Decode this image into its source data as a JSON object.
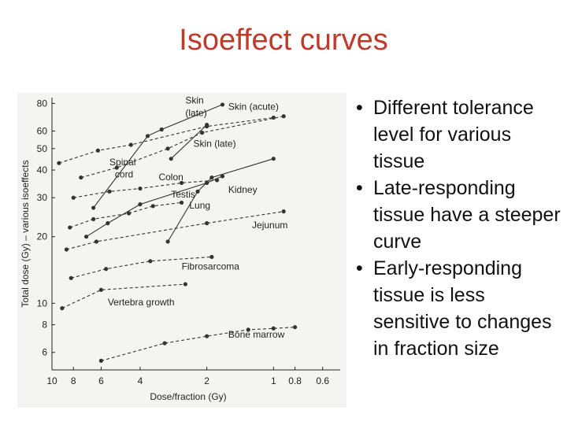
{
  "slide": {
    "title": "Isoeffect curves",
    "bullets": [
      "Different tolerance level for various tissue",
      "Late-responding tissue have a steeper curve",
      "Early-responding tissue is less sensitive to changes in fraction size"
    ]
  },
  "chart_data": {
    "type": "line",
    "title": "",
    "xlabel": "Dose/fraction (Gy)",
    "ylabel": "Total dose (Gy) – various isoeffects",
    "x_scale": "log-reversed",
    "y_scale": "log",
    "xlim": [
      10,
      0.5
    ],
    "ylim": [
      5,
      85
    ],
    "xticks": [
      10,
      8,
      6,
      4,
      2,
      1,
      0.8,
      0.6
    ],
    "xtick_labels": [
      "10",
      "8",
      "6",
      "4",
      "2",
      "1",
      "0.8",
      "0.6"
    ],
    "yticks": [
      6,
      8,
      10,
      20,
      30,
      40,
      50,
      60,
      80
    ],
    "ytick_labels": [
      "6",
      "8",
      "10",
      "20",
      "30",
      "40",
      "50",
      "60",
      "80"
    ],
    "grid": false,
    "colors": {
      "curve": "#333333",
      "title": "#c0392b",
      "background": "#f4f4f2"
    },
    "series": [
      {
        "name": "Skin (late)",
        "style": "solid",
        "points": [
          [
            6.5,
            27
          ],
          [
            3.7,
            57
          ],
          [
            3.2,
            61
          ],
          [
            1.7,
            79
          ]
        ]
      },
      {
        "name": "Skin (acute)",
        "style": "dashed",
        "points": [
          [
            9.3,
            43
          ],
          [
            6.2,
            49
          ],
          [
            4.4,
            52
          ],
          [
            2.0,
            63
          ],
          [
            1.0,
            69
          ]
        ]
      },
      {
        "name": "Skin (late)",
        "style": "solid",
        "points": [
          [
            2.9,
            45
          ],
          [
            2.0,
            64
          ]
        ]
      },
      {
        "name": "Spinal cord",
        "style": "dashed",
        "points": [
          [
            7.4,
            37
          ],
          [
            5.1,
            41
          ],
          [
            3.0,
            50
          ],
          [
            2.1,
            59
          ],
          [
            0.9,
            70
          ]
        ]
      },
      {
        "name": "Colon",
        "style": "dashed",
        "points": [
          [
            8.0,
            30
          ],
          [
            5.5,
            32
          ],
          [
            4.0,
            33
          ],
          [
            2.6,
            35
          ],
          [
            1.8,
            36
          ]
        ]
      },
      {
        "name": "Kidney",
        "style": "solid",
        "points": [
          [
            3.0,
            19
          ],
          [
            2.2,
            32
          ],
          [
            1.9,
            37
          ],
          [
            1.0,
            45
          ]
        ]
      },
      {
        "name": "Testis",
        "style": "dashed",
        "points": [
          [
            8.3,
            22
          ],
          [
            6.5,
            24
          ],
          [
            4.5,
            25.5
          ],
          [
            3.5,
            27.5
          ],
          [
            2.6,
            28.5
          ]
        ]
      },
      {
        "name": "Lung",
        "style": "solid",
        "points": [
          [
            7.0,
            20
          ],
          [
            5.6,
            23
          ],
          [
            4.0,
            28
          ],
          [
            2.0,
            35
          ],
          [
            1.7,
            37.5
          ]
        ]
      },
      {
        "name": "Jejunum",
        "style": "dashed",
        "points": [
          [
            8.6,
            17.5
          ],
          [
            6.3,
            19
          ],
          [
            2.0,
            23
          ],
          [
            0.9,
            26
          ]
        ]
      },
      {
        "name": "Fibrosarcoma",
        "style": "dashed",
        "points": [
          [
            8.2,
            13
          ],
          [
            5.7,
            14.3
          ],
          [
            3.6,
            15.5
          ],
          [
            1.9,
            16.2
          ]
        ]
      },
      {
        "name": "Vertebra growth",
        "style": "dashed",
        "points": [
          [
            9.0,
            9.5
          ],
          [
            6.0,
            11.5
          ],
          [
            2.5,
            12.2
          ]
        ]
      },
      {
        "name": "Bone marrow",
        "style": "dashed",
        "points": [
          [
            6.0,
            5.5
          ],
          [
            3.1,
            6.6
          ],
          [
            2.0,
            7.1
          ],
          [
            1.3,
            7.6
          ],
          [
            1.0,
            7.7
          ],
          [
            0.8,
            7.8
          ]
        ]
      }
    ],
    "labels": [
      {
        "text": "Skin",
        "x": 2.5,
        "y": 80
      },
      {
        "text": "(late)",
        "x": 2.5,
        "y": 70
      },
      {
        "text": "Skin (acute)",
        "x": 1.6,
        "y": 75
      },
      {
        "text": "Skin (late)",
        "x": 2.3,
        "y": 51
      },
      {
        "text": "Spinal",
        "x": 5.5,
        "y": 42
      },
      {
        "text": "cord",
        "x": 5.2,
        "y": 37
      },
      {
        "text": "Colon",
        "x": 3.3,
        "y": 36
      },
      {
        "text": "Testis",
        "x": 2.9,
        "y": 30
      },
      {
        "text": "Lung",
        "x": 2.4,
        "y": 26.8
      },
      {
        "text": "Kidney",
        "x": 1.6,
        "y": 31.5
      },
      {
        "text": "Jejunum",
        "x": 1.25,
        "y": 21.8
      },
      {
        "text": "Fibrosarcoma",
        "x": 2.6,
        "y": 14.2
      },
      {
        "text": "Vertebra growth",
        "x": 5.6,
        "y": 9.8
      },
      {
        "text": "Bone marrow",
        "x": 1.6,
        "y": 7.0
      }
    ]
  }
}
